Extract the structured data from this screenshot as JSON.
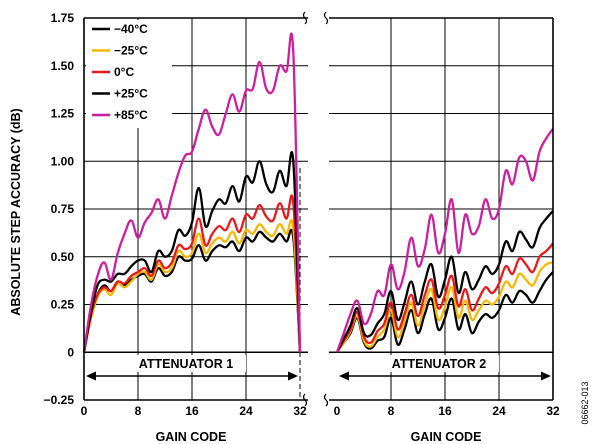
{
  "chart_data": {
    "type": "line",
    "xlabel": "GAIN CODE",
    "ylabel": "ABSOLUTE STEP ACCURACY (dB)",
    "ylim": [
      -0.25,
      1.75
    ],
    "yticks": [
      "1.75",
      "1.50",
      "1.25",
      "1.00",
      "0.75",
      "0.50",
      "0.25",
      "0",
      "−0.25"
    ],
    "xticks": [
      "0",
      "8",
      "16",
      "24",
      "32"
    ],
    "grid": true,
    "legend": {
      "placement": "top-left",
      "entries": [
        {
          "label": "−40°C",
          "color": "#000000"
        },
        {
          "label": "−25°C",
          "color": "#F5B800"
        },
        {
          "label": "0°C",
          "color": "#E8191B"
        },
        {
          "label": "+25°C",
          "color": "#000000"
        },
        {
          "label": "+85°C",
          "color": "#CC1F9E"
        }
      ]
    },
    "colors": [
      "#000000",
      "#F5B800",
      "#E8191B",
      "#000000",
      "#CC1F9E"
    ],
    "figure_id": "06662-013",
    "panels": [
      {
        "region_label": "ATTENUATOR 1",
        "xlim": [
          0,
          32
        ],
        "series": [
          {
            "x": [
              0,
              1,
              2,
              3,
              4,
              5,
              6,
              7,
              8,
              9,
              10,
              11,
              12,
              13,
              14,
              15,
              16,
              17,
              18,
              19,
              20,
              21,
              22,
              23,
              24,
              25,
              26,
              27,
              28,
              29,
              30,
              31,
              32
            ],
            "values": [
              0,
              0.18,
              0.3,
              0.35,
              0.32,
              0.37,
              0.35,
              0.38,
              0.4,
              0.41,
              0.37,
              0.44,
              0.4,
              0.42,
              0.5,
              0.48,
              0.49,
              0.56,
              0.48,
              0.53,
              0.56,
              0.55,
              0.58,
              0.53,
              0.6,
              0.58,
              0.63,
              0.6,
              0.58,
              0.62,
              0.58,
              0.6,
              0
            ]
          },
          {
            "x": [
              0,
              1,
              2,
              3,
              4,
              5,
              6,
              7,
              8,
              9,
              10,
              11,
              12,
              13,
              14,
              15,
              16,
              17,
              18,
              19,
              20,
              21,
              22,
              23,
              24,
              25,
              26,
              27,
              28,
              29,
              30,
              31,
              32
            ],
            "values": [
              0,
              0.17,
              0.29,
              0.33,
              0.3,
              0.36,
              0.34,
              0.37,
              0.41,
              0.42,
              0.38,
              0.46,
              0.42,
              0.44,
              0.53,
              0.5,
              0.52,
              0.62,
              0.52,
              0.57,
              0.6,
              0.58,
              0.63,
              0.57,
              0.64,
              0.62,
              0.67,
              0.63,
              0.61,
              0.67,
              0.62,
              0.65,
              0
            ]
          },
          {
            "x": [
              0,
              1,
              2,
              3,
              4,
              5,
              6,
              7,
              8,
              9,
              10,
              11,
              12,
              13,
              14,
              15,
              16,
              17,
              18,
              19,
              20,
              21,
              22,
              23,
              24,
              25,
              26,
              27,
              28,
              29,
              30,
              31,
              32
            ],
            "values": [
              0,
              0.19,
              0.3,
              0.34,
              0.32,
              0.37,
              0.36,
              0.4,
              0.42,
              0.44,
              0.4,
              0.48,
              0.44,
              0.47,
              0.56,
              0.54,
              0.57,
              0.7,
              0.56,
              0.62,
              0.66,
              0.64,
              0.7,
              0.63,
              0.72,
              0.7,
              0.77,
              0.71,
              0.69,
              0.78,
              0.7,
              0.78,
              0
            ]
          },
          {
            "x": [
              0,
              1,
              2,
              3,
              4,
              5,
              6,
              7,
              8,
              9,
              10,
              11,
              12,
              13,
              14,
              15,
              16,
              17,
              18,
              19,
              20,
              21,
              22,
              23,
              24,
              25,
              26,
              27,
              28,
              29,
              30,
              31,
              32
            ],
            "values": [
              0,
              0.2,
              0.35,
              0.38,
              0.37,
              0.41,
              0.41,
              0.45,
              0.48,
              0.48,
              0.42,
              0.53,
              0.5,
              0.53,
              0.64,
              0.61,
              0.68,
              0.86,
              0.66,
              0.74,
              0.8,
              0.78,
              0.87,
              0.79,
              0.92,
              0.89,
              1.0,
              0.88,
              0.84,
              0.95,
              0.87,
              1.0,
              0
            ]
          },
          {
            "x": [
              0,
              1,
              2,
              3,
              4,
              5,
              6,
              7,
              8,
              9,
              10,
              11,
              12,
              13,
              14,
              15,
              16,
              17,
              18,
              19,
              20,
              21,
              22,
              23,
              24,
              25,
              26,
              27,
              28,
              29,
              30,
              31,
              32
            ],
            "values": [
              0,
              0.24,
              0.4,
              0.47,
              0.38,
              0.52,
              0.62,
              0.69,
              0.6,
              0.68,
              0.73,
              0.8,
              0.7,
              0.82,
              0.94,
              1.03,
              1.05,
              1.17,
              1.27,
              1.18,
              1.14,
              1.25,
              1.35,
              1.26,
              1.37,
              1.38,
              1.52,
              1.38,
              1.37,
              1.5,
              1.47,
              1.57,
              0
            ]
          }
        ]
      },
      {
        "region_label": "ATTENUATOR 2",
        "xlim": [
          0,
          32
        ],
        "series": [
          {
            "x": [
              0,
              1,
              2,
              3,
              4,
              5,
              6,
              7,
              8,
              9,
              10,
              11,
              12,
              13,
              14,
              15,
              16,
              17,
              18,
              19,
              20,
              21,
              22,
              23,
              24,
              25,
              26,
              27,
              28,
              29,
              30,
              31,
              32
            ],
            "values": [
              0,
              0.05,
              0.1,
              0.18,
              0.05,
              0.02,
              0.06,
              0.08,
              0.18,
              0.04,
              0.12,
              0.22,
              0.1,
              0.2,
              0.28,
              0.12,
              0.18,
              0.28,
              0.12,
              0.2,
              0.1,
              0.16,
              0.2,
              0.18,
              0.22,
              0.3,
              0.26,
              0.32,
              0.3,
              0.26,
              0.32,
              0.38,
              0.42
            ]
          },
          {
            "x": [
              0,
              1,
              2,
              3,
              4,
              5,
              6,
              7,
              8,
              9,
              10,
              11,
              12,
              13,
              14,
              15,
              16,
              17,
              18,
              19,
              20,
              21,
              22,
              23,
              24,
              25,
              26,
              27,
              28,
              29,
              30,
              31,
              32
            ],
            "values": [
              0,
              0.05,
              0.11,
              0.19,
              0.06,
              0.03,
              0.08,
              0.12,
              0.22,
              0.08,
              0.16,
              0.26,
              0.14,
              0.25,
              0.33,
              0.17,
              0.24,
              0.34,
              0.18,
              0.27,
              0.17,
              0.22,
              0.27,
              0.25,
              0.29,
              0.37,
              0.34,
              0.41,
              0.38,
              0.35,
              0.42,
              0.46,
              0.47
            ]
          },
          {
            "x": [
              0,
              1,
              2,
              3,
              4,
              5,
              6,
              7,
              8,
              9,
              10,
              11,
              12,
              13,
              14,
              15,
              16,
              17,
              18,
              19,
              20,
              21,
              22,
              23,
              24,
              25,
              26,
              27,
              28,
              29,
              30,
              31,
              32
            ],
            "values": [
              0,
              0.06,
              0.12,
              0.21,
              0.08,
              0.05,
              0.11,
              0.15,
              0.26,
              0.12,
              0.2,
              0.3,
              0.19,
              0.3,
              0.38,
              0.23,
              0.3,
              0.4,
              0.24,
              0.33,
              0.22,
              0.28,
              0.34,
              0.31,
              0.36,
              0.45,
              0.41,
              0.49,
              0.46,
              0.42,
              0.5,
              0.53,
              0.57
            ]
          },
          {
            "x": [
              0,
              1,
              2,
              3,
              4,
              5,
              6,
              7,
              8,
              9,
              10,
              11,
              12,
              13,
              14,
              15,
              16,
              17,
              18,
              19,
              20,
              21,
              22,
              23,
              24,
              25,
              26,
              27,
              28,
              29,
              30,
              31,
              32
            ],
            "values": [
              0,
              0.07,
              0.14,
              0.23,
              0.1,
              0.09,
              0.15,
              0.2,
              0.32,
              0.17,
              0.26,
              0.37,
              0.25,
              0.37,
              0.46,
              0.29,
              0.38,
              0.5,
              0.31,
              0.42,
              0.33,
              0.38,
              0.45,
              0.41,
              0.46,
              0.58,
              0.53,
              0.63,
              0.59,
              0.55,
              0.65,
              0.7,
              0.74
            ]
          },
          {
            "x": [
              0,
              1,
              2,
              3,
              4,
              5,
              6,
              7,
              8,
              9,
              10,
              11,
              12,
              13,
              14,
              15,
              16,
              17,
              18,
              19,
              20,
              21,
              22,
              23,
              24,
              25,
              26,
              27,
              28,
              29,
              30,
              31,
              32
            ],
            "values": [
              0,
              0.1,
              0.2,
              0.27,
              0.15,
              0.2,
              0.32,
              0.3,
              0.46,
              0.33,
              0.42,
              0.6,
              0.45,
              0.54,
              0.72,
              0.52,
              0.62,
              0.8,
              0.52,
              0.72,
              0.62,
              0.66,
              0.8,
              0.7,
              0.75,
              0.95,
              0.88,
              1.02,
              1.0,
              0.9,
              1.05,
              1.12,
              1.17
            ]
          }
        ]
      }
    ]
  }
}
